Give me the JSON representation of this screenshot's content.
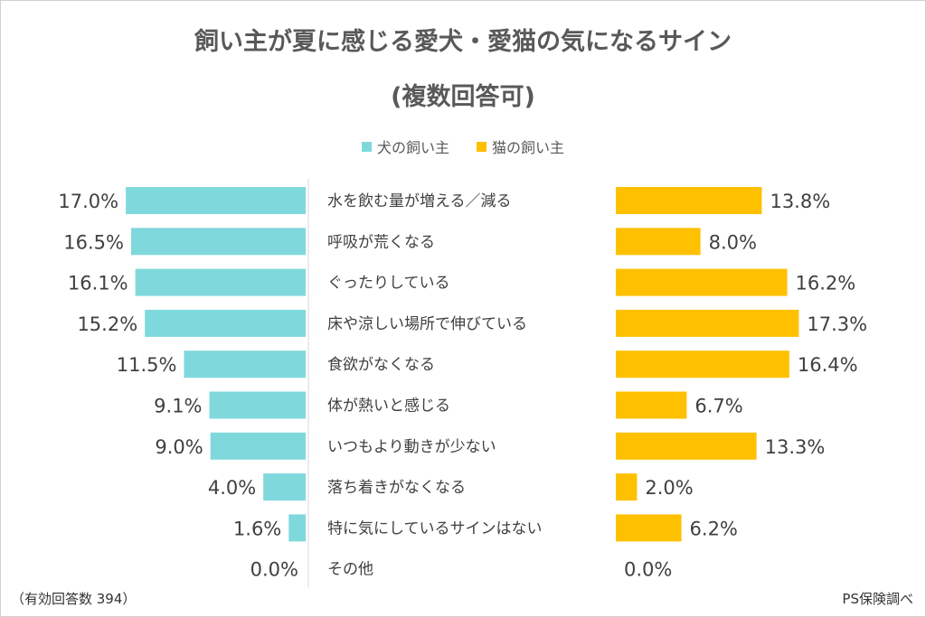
{
  "title_line1": "飼い主が夏に感じる愛犬・愛猫の気になるサイン",
  "title_line2": "(複数回答可)",
  "footnote_left": "（有効回答数 394）",
  "footnote_right": "PS保険調べ",
  "chart_data": {
    "type": "bar",
    "orientation": "horizontal-butterfly",
    "categories": [
      "水を飲む量が増える／減る",
      "呼吸が荒くなる",
      "ぐったりしている",
      "床や涼しい場所で伸びている",
      "食欲がなくなる",
      "体が熱いと感じる",
      "いつもより動きが少ない",
      "落ち着きがなくなる",
      "特に気にしているサインはない",
      "その他"
    ],
    "series": [
      {
        "name": "犬の飼い主",
        "color": "#7fd9dc",
        "values": [
          17.0,
          16.5,
          16.1,
          15.2,
          11.5,
          9.1,
          9.0,
          4.0,
          1.6,
          0.0
        ],
        "labels": [
          "17.0%",
          "16.5%",
          "16.1%",
          "15.2%",
          "11.5%",
          "9.1%",
          "9.0%",
          "4.0%",
          "1.6%",
          "0.0%"
        ]
      },
      {
        "name": "猫の飼い主",
        "color": "#ffc000",
        "values": [
          13.8,
          8.0,
          16.2,
          17.3,
          16.4,
          6.7,
          13.3,
          2.0,
          6.2,
          0.0
        ],
        "labels": [
          "13.8%",
          "8.0%",
          "16.2%",
          "17.3%",
          "16.4%",
          "6.7%",
          "13.3%",
          "2.0%",
          "6.2%",
          "0.0%"
        ]
      }
    ],
    "legend_position": "top",
    "grid": false
  }
}
